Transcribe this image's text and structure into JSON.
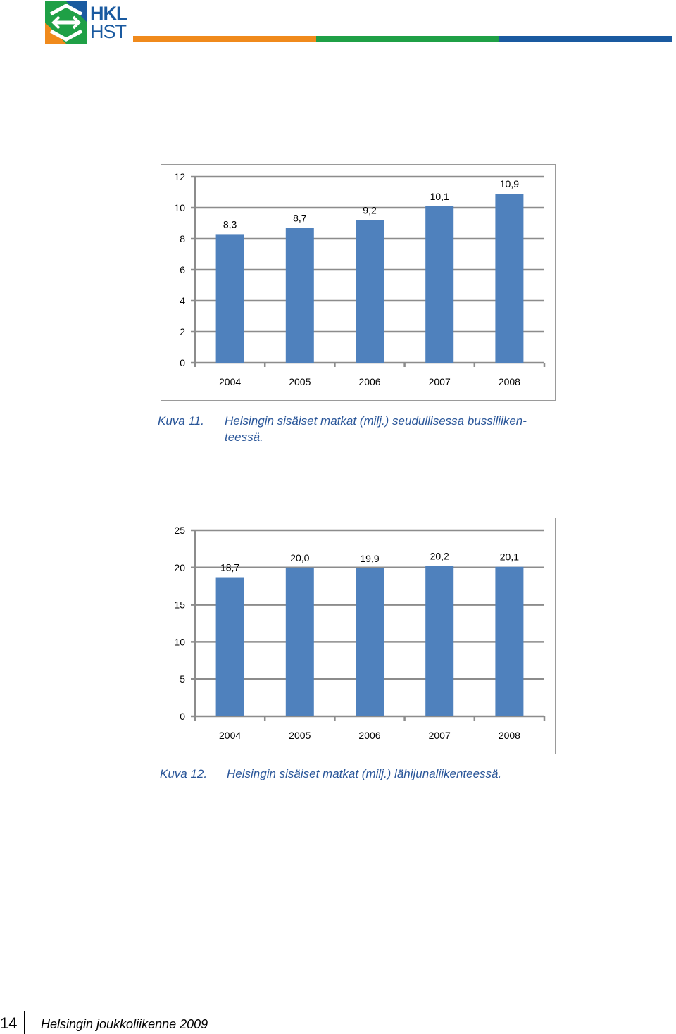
{
  "header": {
    "logo_text_top": "HKL",
    "logo_text_bottom": "HST",
    "colors": {
      "orange": "#f08a1c",
      "green": "#1fa046",
      "blue": "#1a5aa0"
    }
  },
  "figures": [
    {
      "caption_number": "Kuva 11.",
      "caption_line1": "Helsingin sisäiset matkat (milj.) seudullisessa bussiliiken-",
      "caption_line2": "teessä."
    },
    {
      "caption_number": "Kuva 12.",
      "caption_line1": "Helsingin sisäiset matkat (milj.) lähijunaliikenteessä.",
      "caption_line2": ""
    }
  ],
  "chart_data": [
    {
      "type": "bar",
      "title": "",
      "xlabel": "",
      "ylabel": "",
      "categories": [
        "2004",
        "2005",
        "2006",
        "2007",
        "2008"
      ],
      "values": [
        8.3,
        8.7,
        9.2,
        10.1,
        10.9
      ],
      "value_labels": [
        "8,3",
        "8,7",
        "9,2",
        "10,1",
        "10,9"
      ],
      "yticks": [
        0,
        2,
        4,
        6,
        8,
        10,
        12
      ],
      "ytick_labels": [
        "0",
        "2",
        "4",
        "6",
        "8",
        "10",
        "12"
      ],
      "ylim": [
        0,
        12
      ],
      "grid": true,
      "legend": "none",
      "bar_color": "#4f81bd"
    },
    {
      "type": "bar",
      "title": "",
      "xlabel": "",
      "ylabel": "",
      "categories": [
        "2004",
        "2005",
        "2006",
        "2007",
        "2008"
      ],
      "values": [
        18.7,
        20.0,
        19.9,
        20.2,
        20.1
      ],
      "value_labels": [
        "18,7",
        "20,0",
        "19,9",
        "20,2",
        "20,1"
      ],
      "yticks": [
        0,
        5,
        10,
        15,
        20,
        25
      ],
      "ytick_labels": [
        "0",
        "5",
        "10",
        "15",
        "20",
        "25"
      ],
      "ylim": [
        0,
        25
      ],
      "grid": true,
      "legend": "none",
      "bar_color": "#4f81bd"
    }
  ],
  "footer": {
    "page_number": "14",
    "publication_title": "Helsingin joukkoliikenne 2009"
  }
}
